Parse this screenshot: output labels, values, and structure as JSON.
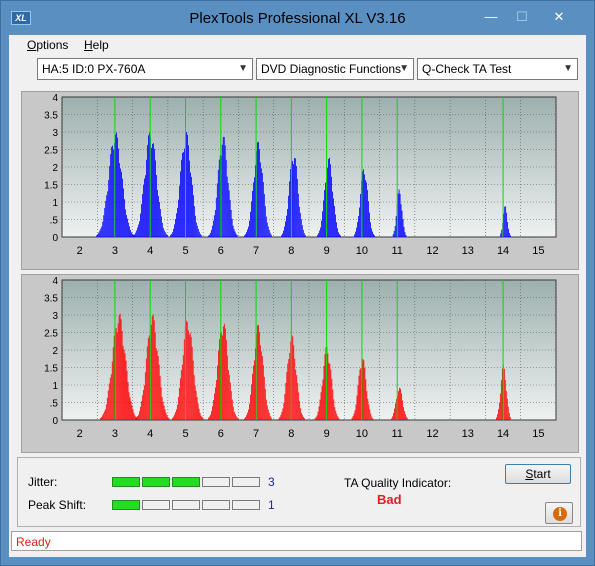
{
  "window": {
    "title": "PlexTools Professional XL V3.16",
    "app_icon_text": "XL",
    "minimize": "—",
    "maximize": "☐",
    "close": "✕"
  },
  "menu": {
    "options": "Options",
    "options_key": "O",
    "options_rest": "ptions",
    "help_key": "H",
    "help_rest": "elp"
  },
  "toolbar": {
    "drive": "HA:5 ID:0  PX-760A",
    "function": "DVD Diagnostic Functions",
    "test": "Q-Check TA Test"
  },
  "chart_data": [
    {
      "type": "bar",
      "name": "land",
      "color": "#0000ff",
      "xlim": [
        1.5,
        15.5
      ],
      "ylim": [
        0,
        4
      ],
      "x_ticks": [
        2,
        3,
        4,
        5,
        6,
        7,
        8,
        9,
        10,
        11,
        12,
        13,
        14,
        15
      ],
      "y_ticks": [
        0,
        0.5,
        1,
        1.5,
        2,
        2.5,
        3,
        3.5,
        4
      ],
      "y_tick_labels": [
        "0",
        ".5",
        "1",
        "1.5",
        "2",
        "2.5",
        "3",
        "3.5",
        "4"
      ],
      "markers": [
        3,
        4,
        5,
        6,
        7,
        8,
        9,
        10,
        11,
        14
      ],
      "peaks": [
        {
          "center": 3.0,
          "height": 3.05,
          "width": 0.3
        },
        {
          "center": 4.0,
          "height": 3.1,
          "width": 0.27
        },
        {
          "center": 5.0,
          "height": 3.05,
          "width": 0.25
        },
        {
          "center": 6.05,
          "height": 2.95,
          "width": 0.23
        },
        {
          "center": 7.05,
          "height": 2.75,
          "width": 0.22
        },
        {
          "center": 8.05,
          "height": 2.5,
          "width": 0.2
        },
        {
          "center": 9.05,
          "height": 2.3,
          "width": 0.19
        },
        {
          "center": 10.05,
          "height": 2.05,
          "width": 0.17
        },
        {
          "center": 11.05,
          "height": 1.4,
          "width": 0.12
        },
        {
          "center": 14.05,
          "height": 0.9,
          "width": 0.1
        }
      ]
    },
    {
      "type": "bar",
      "name": "pit",
      "color": "#ff0000",
      "xlim": [
        1.5,
        15.5
      ],
      "ylim": [
        0,
        4
      ],
      "x_ticks": [
        2,
        3,
        4,
        5,
        6,
        7,
        8,
        9,
        10,
        11,
        12,
        13,
        14,
        15
      ],
      "y_ticks": [
        0,
        0.5,
        1,
        1.5,
        2,
        2.5,
        3,
        3.5,
        4
      ],
      "y_tick_labels": [
        "0",
        ".5",
        "1",
        "1.5",
        "2",
        "2.5",
        "3",
        "3.5",
        "4"
      ],
      "markers": [
        3,
        4,
        5,
        6,
        7,
        8,
        9,
        10,
        11,
        14
      ],
      "peaks": [
        {
          "center": 3.1,
          "height": 3.1,
          "width": 0.3
        },
        {
          "center": 4.05,
          "height": 3.05,
          "width": 0.27
        },
        {
          "center": 5.05,
          "height": 2.95,
          "width": 0.25
        },
        {
          "center": 6.05,
          "height": 2.9,
          "width": 0.24
        },
        {
          "center": 7.05,
          "height": 2.75,
          "width": 0.22
        },
        {
          "center": 8.0,
          "height": 2.45,
          "width": 0.21
        },
        {
          "center": 9.0,
          "height": 2.15,
          "width": 0.2
        },
        {
          "center": 10.0,
          "height": 1.85,
          "width": 0.18
        },
        {
          "center": 11.05,
          "height": 0.95,
          "width": 0.15
        },
        {
          "center": 14.0,
          "height": 1.6,
          "width": 0.13
        }
      ]
    }
  ],
  "status": {
    "jitter_label": "Jitter:",
    "jitter_value": 3,
    "jitter_text": "3",
    "peak_shift_label": "Peak Shift:",
    "peak_shift_value": 1,
    "peak_shift_text": "1",
    "meter_max": 5,
    "ta_label": "TA Quality Indicator:",
    "ta_result": "Bad",
    "start_label": "Start",
    "start_key": "S",
    "start_rest": "tart"
  },
  "statusbar": {
    "text": "Ready"
  }
}
